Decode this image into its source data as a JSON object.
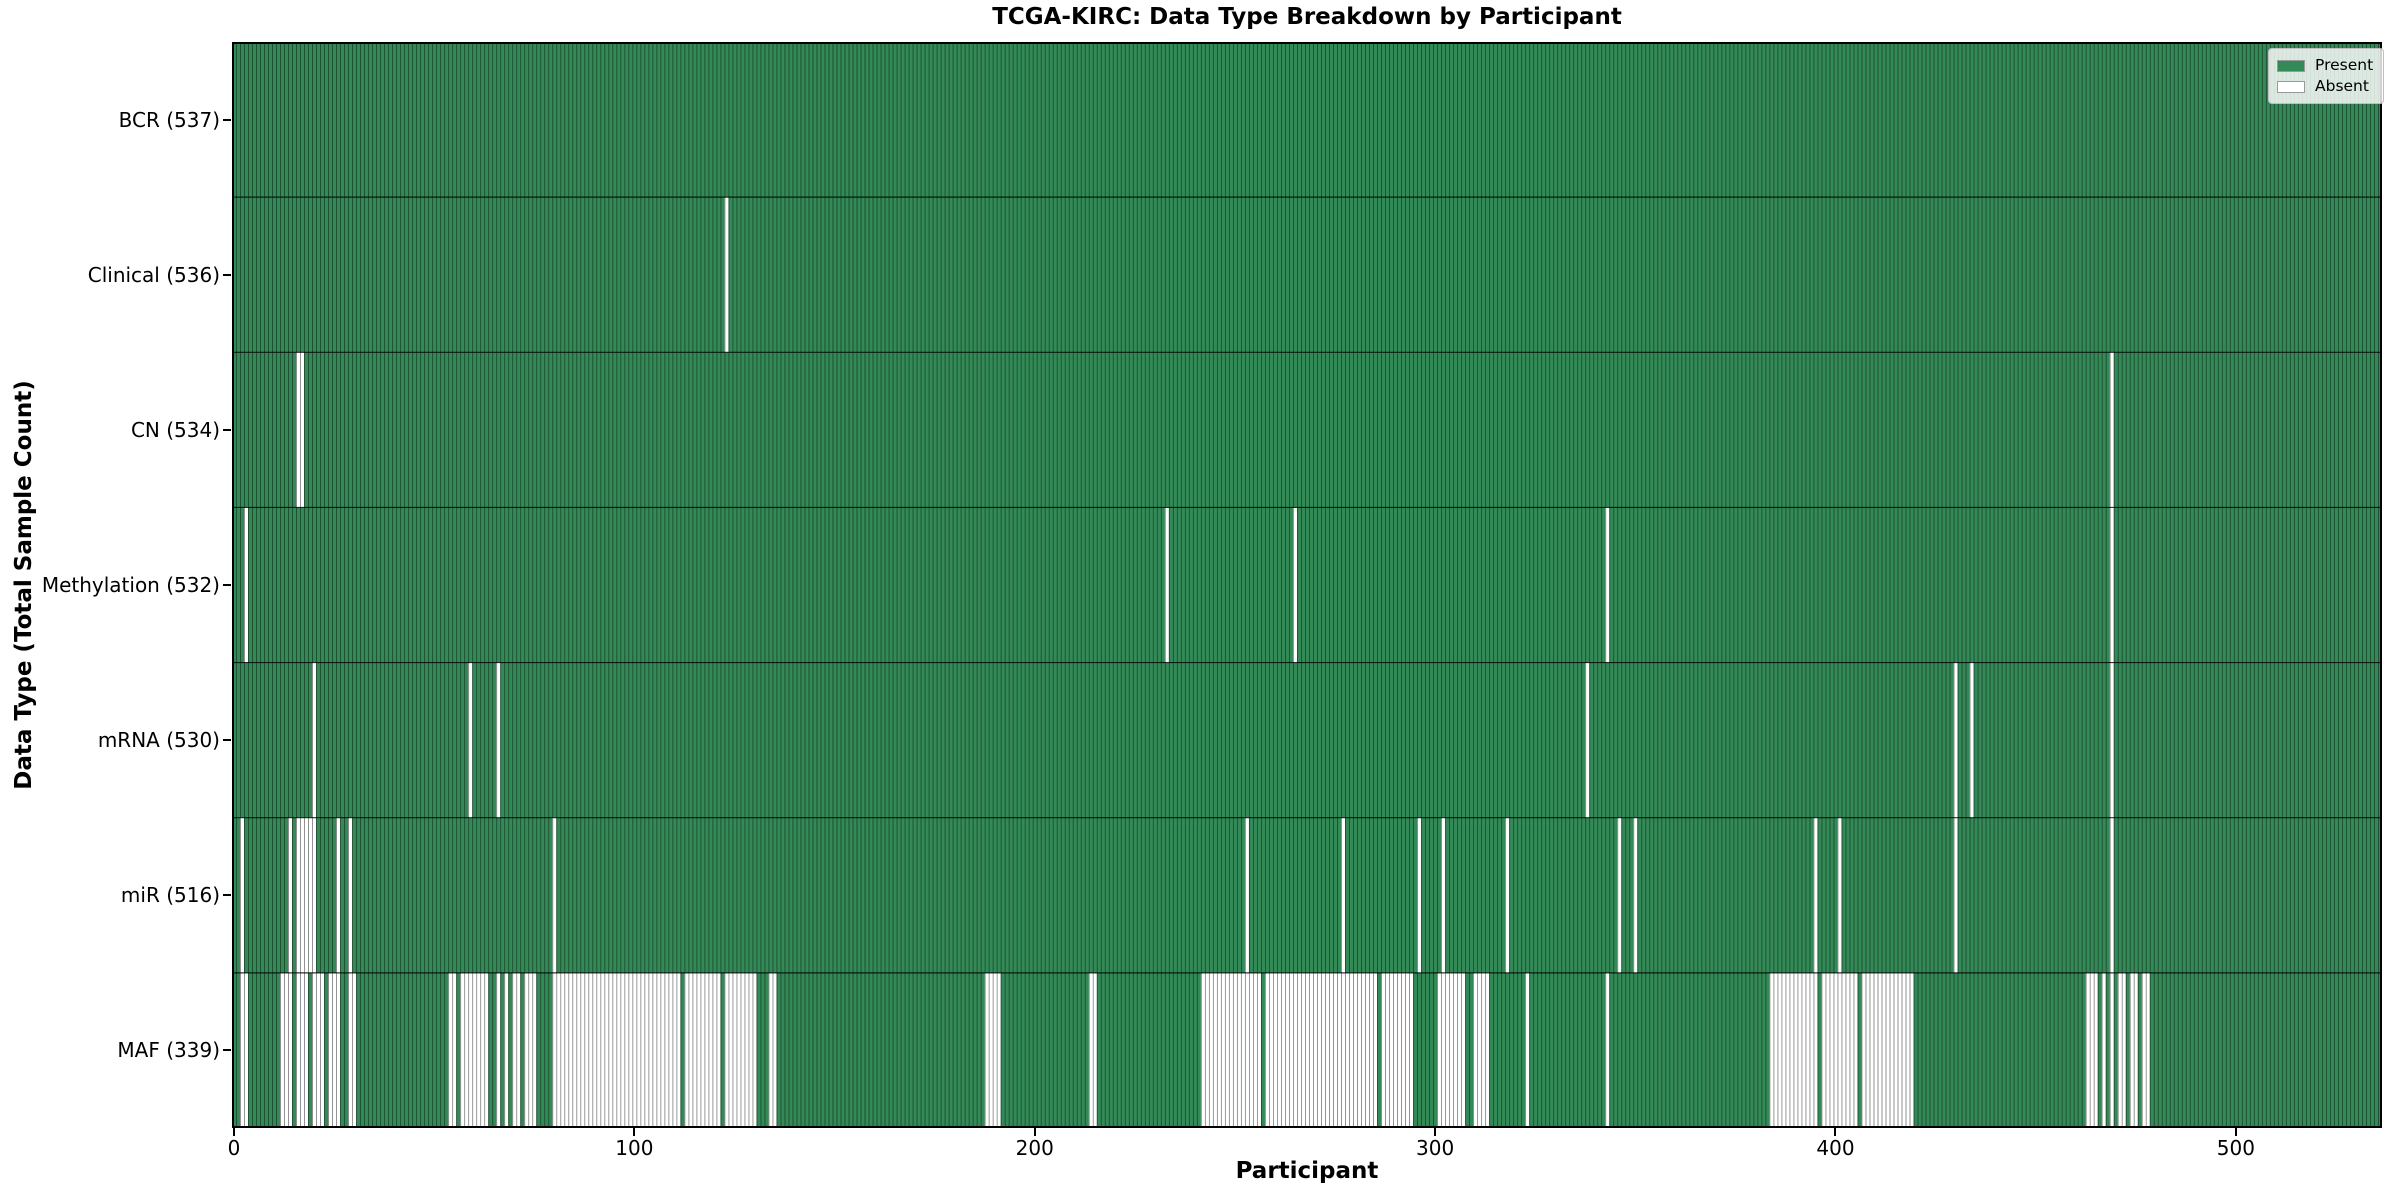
{
  "title": "TCGA-KIRC: Data Type Breakdown by Participant",
  "axes": {
    "xlabel": "Participant",
    "ylabel": "Data Type (Total Sample Count)"
  },
  "legend": {
    "entries": [
      {
        "label": "Present",
        "color_key": "present"
      },
      {
        "label": "Absent",
        "color_key": "absent"
      }
    ]
  },
  "colors": {
    "present": "#338a57",
    "absent": "#ffffff",
    "bar_edge": "rgba(0,0,0,0.45)",
    "row_divider": "rgba(0,0,0,0.8)",
    "axis": "#000000",
    "legend_bg": "rgba(255,255,255,0.82)",
    "text": "#000000"
  },
  "chart_data": {
    "type": "heatmap",
    "title": "TCGA-KIRC: Data Type Breakdown by Participant",
    "xlabel": "Participant",
    "ylabel": "Data Type (Total Sample Count)",
    "legend_entries": [
      "Present",
      "Absent"
    ],
    "x_ticks": [
      0,
      100,
      200,
      300,
      400,
      500
    ],
    "x_range": [
      0,
      537
    ],
    "total_participants": 537,
    "cell_values": {
      "present": 1,
      "absent": 0
    },
    "rows": [
      {
        "name": "BCR",
        "label": "BCR (537)",
        "present_count": 537,
        "absent_count": 0,
        "absent_ranges": []
      },
      {
        "name": "Clinical",
        "label": "Clinical (536)",
        "present_count": 536,
        "absent_count": 1,
        "absent_ranges": [
          [
            123,
            123
          ]
        ]
      },
      {
        "name": "CN",
        "label": "CN (534)",
        "present_count": 534,
        "absent_count": 3,
        "absent_ranges": [
          [
            16,
            17
          ],
          [
            469,
            469
          ]
        ]
      },
      {
        "name": "Methylation",
        "label": "Methylation (532)",
        "present_count": 532,
        "absent_count": 5,
        "absent_ranges": [
          [
            3,
            3
          ],
          [
            233,
            233
          ],
          [
            265,
            265
          ],
          [
            343,
            343
          ],
          [
            469,
            469
          ]
        ]
      },
      {
        "name": "mRNA",
        "label": "mRNA (530)",
        "present_count": 530,
        "absent_count": 7,
        "absent_ranges": [
          [
            20,
            20
          ],
          [
            59,
            59
          ],
          [
            66,
            66
          ],
          [
            338,
            338
          ],
          [
            430,
            430
          ],
          [
            434,
            434
          ],
          [
            469,
            469
          ]
        ]
      },
      {
        "name": "miR",
        "label": "miR (516)",
        "present_count": 516,
        "absent_count": 21,
        "absent_ranges": [
          [
            2,
            2
          ],
          [
            14,
            14
          ],
          [
            16,
            18
          ],
          [
            19,
            20
          ],
          [
            26,
            26
          ],
          [
            29,
            29
          ],
          [
            80,
            80
          ],
          [
            253,
            253
          ],
          [
            277,
            277
          ],
          [
            296,
            296
          ],
          [
            302,
            302
          ],
          [
            318,
            318
          ],
          [
            346,
            346
          ],
          [
            350,
            350
          ],
          [
            395,
            395
          ],
          [
            401,
            401
          ],
          [
            430,
            430
          ],
          [
            469,
            469
          ]
        ]
      },
      {
        "name": "MAF",
        "label": "MAF (339)",
        "present_count": 339,
        "absent_count": 198,
        "absent_ranges": [
          [
            2,
            3
          ],
          [
            12,
            14
          ],
          [
            16,
            18
          ],
          [
            20,
            22
          ],
          [
            24,
            26
          ],
          [
            29,
            30
          ],
          [
            54,
            55
          ],
          [
            57,
            63
          ],
          [
            66,
            66
          ],
          [
            68,
            68
          ],
          [
            70,
            71
          ],
          [
            73,
            75
          ],
          [
            80,
            111
          ],
          [
            113,
            121
          ],
          [
            123,
            130
          ],
          [
            134,
            135
          ],
          [
            188,
            191
          ],
          [
            214,
            215
          ],
          [
            242,
            256
          ],
          [
            258,
            285
          ],
          [
            287,
            294
          ],
          [
            301,
            307
          ],
          [
            310,
            313
          ],
          [
            323,
            323
          ],
          [
            343,
            343
          ],
          [
            384,
            395
          ],
          [
            397,
            405
          ],
          [
            407,
            419
          ],
          [
            463,
            465
          ],
          [
            467,
            467
          ],
          [
            469,
            469
          ],
          [
            471,
            472
          ],
          [
            474,
            475
          ],
          [
            477,
            478
          ]
        ]
      }
    ]
  }
}
